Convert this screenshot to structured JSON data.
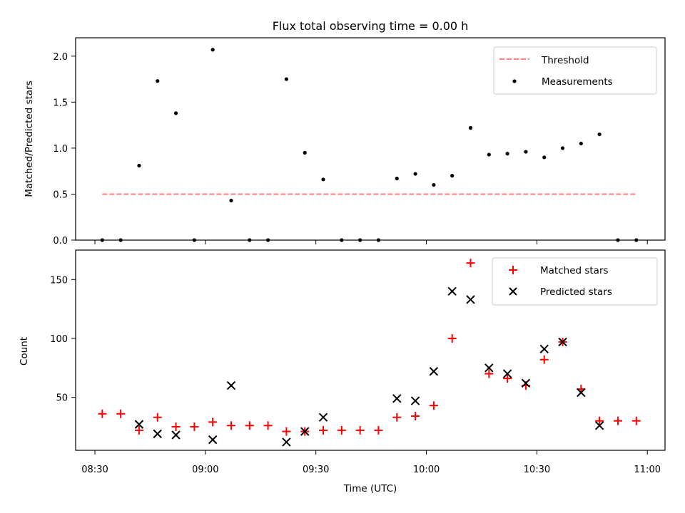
{
  "chart_data": [
    {
      "type": "scatter",
      "title": "Flux total observing time = 0.00 h",
      "ylabel": "Matched/Predicted stars",
      "xlabel": "",
      "ylim": [
        0,
        2.2
      ],
      "yticks": [
        "0.0",
        "0.5",
        "1.0",
        "1.5",
        "2.0"
      ],
      "legend_position": "top-right",
      "threshold": {
        "name": "Threshold",
        "value": 0.5,
        "x_range": [
          "08:32",
          "10:57"
        ],
        "color": "#ff7f7f",
        "style": "dashed"
      },
      "series": [
        {
          "name": "Measurements",
          "color": "#000000",
          "marker": "dot",
          "x": [
            "08:32",
            "08:37",
            "08:42",
            "08:47",
            "08:52",
            "08:57",
            "09:02",
            "09:07",
            "09:12",
            "09:17",
            "09:22",
            "09:27",
            "09:32",
            "09:37",
            "09:42",
            "09:47",
            "09:52",
            "09:57",
            "10:02",
            "10:07",
            "10:12",
            "10:17",
            "10:22",
            "10:27",
            "10:32",
            "10:37",
            "10:42",
            "10:47",
            "10:52",
            "10:57"
          ],
          "values": [
            0.0,
            0.0,
            0.81,
            1.73,
            1.38,
            0.0,
            2.07,
            0.43,
            0.0,
            0.0,
            1.75,
            0.95,
            0.66,
            0.0,
            0.0,
            0.0,
            0.67,
            0.72,
            0.6,
            0.7,
            1.22,
            0.93,
            0.94,
            0.96,
            0.9,
            1.0,
            1.05,
            1.15,
            0.0,
            0.0
          ]
        }
      ]
    },
    {
      "type": "scatter",
      "title": "",
      "ylabel": "Count",
      "xlabel": "Time (UTC)",
      "ylim": [
        5,
        175
      ],
      "yticks": [
        "50",
        "100",
        "150"
      ],
      "xticks": [
        "08:30",
        "09:00",
        "09:30",
        "10:00",
        "10:30",
        "11:00"
      ],
      "legend_position": "top-right",
      "series": [
        {
          "name": "Matched stars",
          "color": "#ff0000",
          "marker": "plus",
          "x": [
            "08:32",
            "08:37",
            "08:42",
            "08:47",
            "08:52",
            "08:57",
            "09:02",
            "09:07",
            "09:12",
            "09:17",
            "09:22",
            "09:27",
            "09:32",
            "09:37",
            "09:42",
            "09:47",
            "09:52",
            "09:57",
            "10:02",
            "10:07",
            "10:12",
            "10:17",
            "10:22",
            "10:27",
            "10:32",
            "10:37",
            "10:42",
            "10:47",
            "10:52",
            "10:57"
          ],
          "values": [
            36,
            36,
            22,
            33,
            25,
            25,
            29,
            26,
            26,
            26,
            21,
            21,
            22,
            22,
            22,
            22,
            33,
            34,
            43,
            100,
            164,
            70,
            66,
            60,
            82,
            97,
            57,
            30,
            30,
            30
          ]
        },
        {
          "name": "Predicted stars",
          "color": "#000000",
          "marker": "x",
          "x": [
            "08:42",
            "08:47",
            "08:52",
            "09:02",
            "09:07",
            "09:22",
            "09:27",
            "09:32",
            "09:52",
            "09:57",
            "10:02",
            "10:07",
            "10:12",
            "10:17",
            "10:22",
            "10:27",
            "10:32",
            "10:37",
            "10:42",
            "10:47"
          ],
          "values": [
            27,
            19,
            18,
            14,
            60,
            12,
            21,
            33,
            49,
            47,
            72,
            140,
            133,
            75,
            70,
            62,
            91,
            97,
            54,
            26
          ]
        }
      ]
    }
  ]
}
